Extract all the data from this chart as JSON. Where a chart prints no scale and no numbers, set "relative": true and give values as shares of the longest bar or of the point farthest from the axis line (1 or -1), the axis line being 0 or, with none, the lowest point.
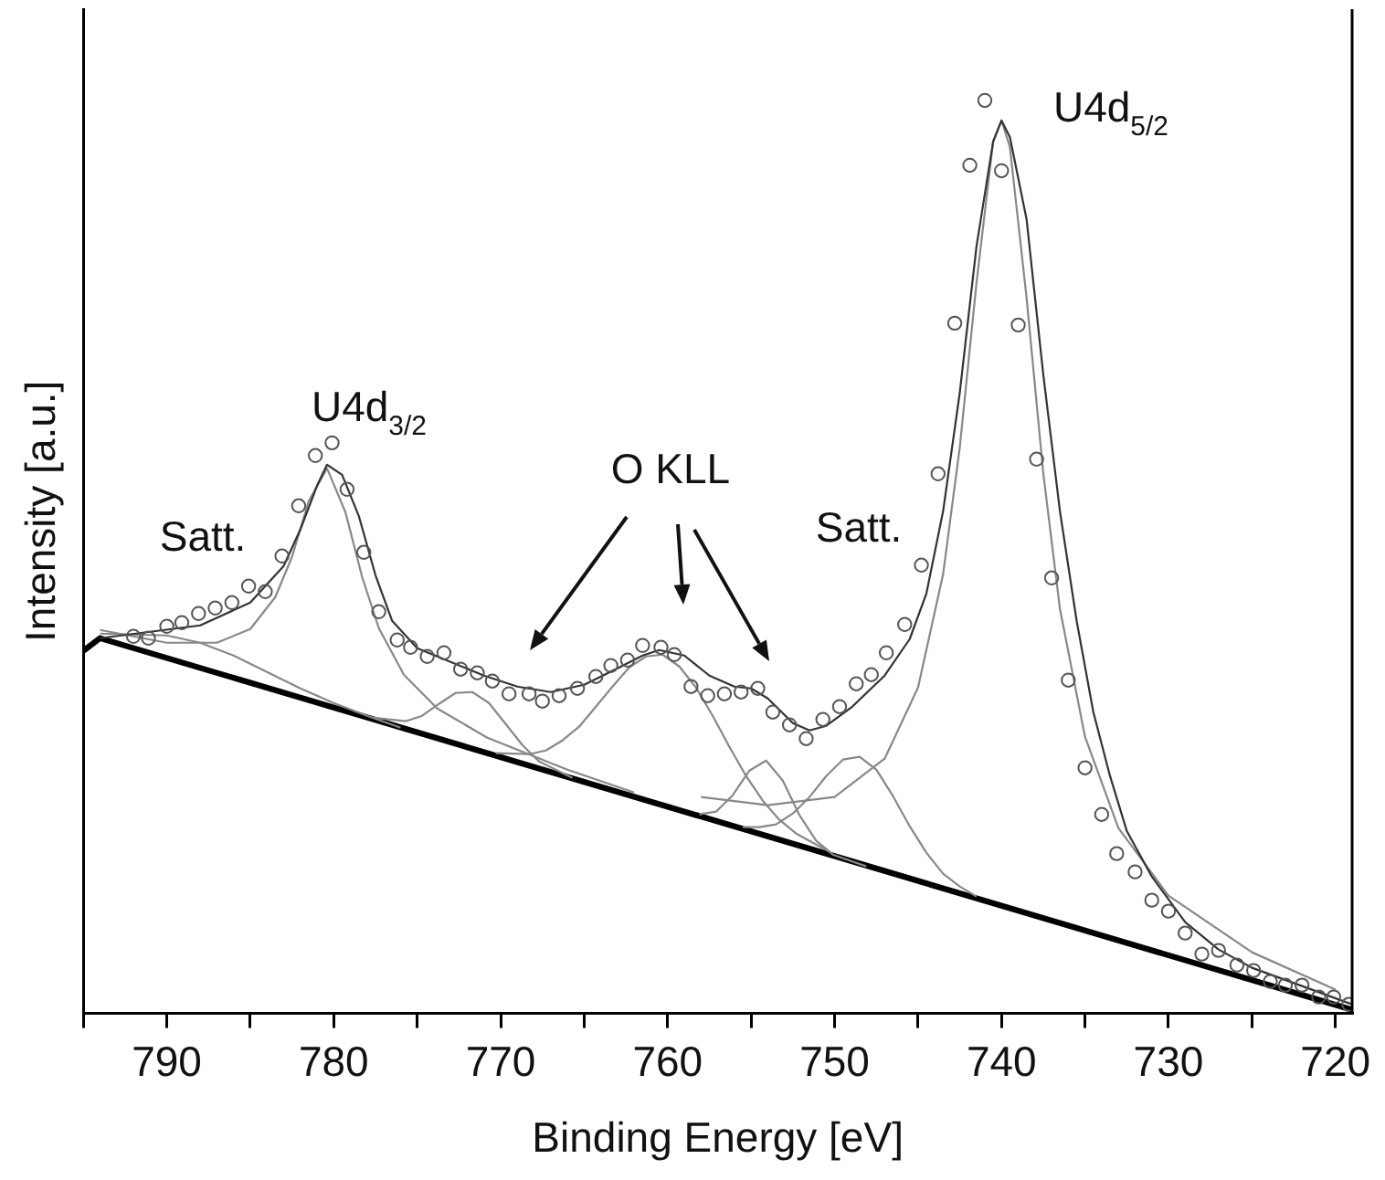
{
  "chart_data": {
    "type": "line",
    "xlabel": "Binding Energy [eV]",
    "ylabel": "Intensity [a.u.]",
    "relative": true,
    "xlim": [
      795,
      719
    ],
    "xticks": [
      {
        "value": 795,
        "label": null
      },
      790,
      {
        "value": 785,
        "label": null
      },
      780,
      {
        "value": 775,
        "label": null
      },
      770,
      {
        "value": 765,
        "label": null
      },
      760,
      {
        "value": 755,
        "label": null
      },
      750,
      {
        "value": 745,
        "label": null
      },
      740,
      {
        "value": 735,
        "label": null
      },
      730,
      {
        "value": 725,
        "label": null
      },
      720
    ],
    "grid": false,
    "legend": false,
    "annotations": [
      "U4d$_{5/2}$",
      "U4d$_{3/2}$",
      "Satt.",
      "Satt.",
      "O KLL"
    ],
    "series": [
      {
        "type": "scatter",
        "marker": "circle",
        "color": "#555555",
        "x": [
          792.0,
          791.1,
          790.0,
          789.1,
          788.1,
          787.1,
          786.1,
          785.1,
          784.1,
          783.1,
          782.1,
          781.1,
          780.1,
          779.2,
          778.2,
          777.3,
          776.2,
          775.4,
          774.4,
          773.4,
          772.4,
          771.4,
          770.5,
          769.5,
          768.3,
          767.5,
          766.5,
          765.4,
          764.3,
          763.4,
          762.4,
          761.5,
          760.4,
          759.6,
          758.6,
          757.6,
          756.6,
          755.6,
          754.6,
          753.7,
          752.7,
          751.7,
          750.7,
          749.7,
          748.7,
          747.8,
          746.9,
          745.8,
          744.8,
          743.8,
          742.8,
          741.9,
          741.0,
          740.0,
          739.0,
          737.9,
          737.0,
          736.0,
          735.0,
          734.0,
          733.1,
          732.0,
          731.0,
          730.0,
          729.0,
          728.0,
          727.0,
          725.9,
          724.9,
          723.9,
          723.0,
          722.0,
          721.0,
          720.1,
          719.2
        ],
        "values": [
          0.413,
          0.411,
          0.424,
          0.428,
          0.438,
          0.444,
          0.45,
          0.468,
          0.462,
          0.501,
          0.556,
          0.611,
          0.625,
          0.574,
          0.505,
          0.44,
          0.409,
          0.401,
          0.391,
          0.395,
          0.377,
          0.373,
          0.364,
          0.35,
          0.35,
          0.342,
          0.348,
          0.356,
          0.369,
          0.381,
          0.387,
          0.403,
          0.401,
          0.393,
          0.358,
          0.348,
          0.35,
          0.352,
          0.356,
          0.33,
          0.316,
          0.301,
          0.322,
          0.336,
          0.361,
          0.371,
          0.395,
          0.426,
          0.491,
          0.591,
          0.756,
          0.929,
          1.0,
          0.923,
          0.754,
          0.607,
          0.477,
          0.365,
          0.269,
          0.218,
          0.175,
          0.155,
          0.124,
          0.112,
          0.088,
          0.065,
          0.069,
          0.053,
          0.047,
          0.035,
          0.031,
          0.031,
          0.018,
          0.018,
          0.01
        ]
      },
      {
        "color": "#333333",
        "x": [
          794,
          791,
          788,
          785,
          783,
          782,
          781,
          780.4,
          779.5,
          778.5,
          777.5,
          776.5,
          775,
          773,
          771,
          769,
          767,
          765,
          763,
          761.5,
          760.5,
          759,
          757.5,
          756,
          755,
          754,
          752.5,
          751.5,
          750.5,
          749,
          747,
          745.5,
          744.5,
          743.5,
          742.5,
          741.5,
          740.5,
          740,
          739.5,
          738.5,
          737.5,
          736.5,
          735.5,
          734.5,
          733.5,
          732.5,
          731,
          729,
          727,
          725,
          722,
          719
        ],
        "values": [
          0.411,
          0.418,
          0.425,
          0.45,
          0.49,
          0.53,
          0.578,
          0.601,
          0.59,
          0.545,
          0.48,
          0.43,
          0.4,
          0.385,
          0.37,
          0.358,
          0.352,
          0.36,
          0.378,
          0.392,
          0.398,
          0.392,
          0.37,
          0.358,
          0.356,
          0.345,
          0.318,
          0.31,
          0.315,
          0.335,
          0.37,
          0.41,
          0.46,
          0.55,
          0.68,
          0.84,
          0.955,
          0.978,
          0.96,
          0.87,
          0.7,
          0.55,
          0.43,
          0.33,
          0.26,
          0.2,
          0.15,
          0.1,
          0.07,
          0.05,
          0.03,
          0.01
        ]
      },
      {
        "type": "line",
        "color": "#888888",
        "x": [
          758,
          754,
          750,
          747,
          745,
          743.5,
          742.5,
          741.5,
          740.5,
          740,
          739.5,
          738.5,
          737.5,
          736.5,
          735,
          733,
          730,
          725,
          720
        ],
        "values": [
          0.237,
          0.228,
          0.237,
          0.279,
          0.357,
          0.481,
          0.62,
          0.8,
          0.955,
          0.978,
          0.949,
          0.784,
          0.592,
          0.443,
          0.303,
          0.203,
          0.129,
          0.067,
          0.026
        ]
      },
      {
        "type": "line",
        "color": "#888888",
        "x": [
          794,
          790,
          787,
          785,
          783.5,
          782.5,
          781.5,
          780.4,
          779.3,
          778.3,
          777.3,
          775.8,
          773.8,
          770.8,
          766,
          762
        ],
        "values": [
          0.42,
          0.406,
          0.406,
          0.421,
          0.456,
          0.5,
          0.561,
          0.597,
          0.549,
          0.478,
          0.422,
          0.371,
          0.334,
          0.302,
          0.267,
          0.242
        ]
      },
      {
        "type": "line",
        "color": "#888888",
        "x": [
          794,
          792,
          790,
          788,
          786,
          784,
          782,
          780,
          778,
          776
        ],
        "values": [
          0.416,
          0.415,
          0.414,
          0.406,
          0.392,
          0.374,
          0.356,
          0.34,
          0.326,
          0.313
        ]
      },
      {
        "type": "line",
        "color": "#888888",
        "x": [
          777.7,
          775.7,
          774.7,
          773.7,
          772.7,
          771.7,
          770.7,
          769.7,
          768.7,
          767.7,
          765.7
        ],
        "values": [
          0.324,
          0.32,
          0.326,
          0.339,
          0.351,
          0.352,
          0.34,
          0.317,
          0.294,
          0.276,
          0.258
        ]
      },
      {
        "type": "line",
        "color": "#888888",
        "x": [
          770.3,
          768.3,
          767.3,
          766.3,
          765.3,
          764.3,
          763.3,
          762.3,
          761.3,
          760.3,
          759.3,
          758.3,
          757.3,
          756.3,
          755.3,
          754.3,
          753.3,
          752.3,
          750.3
        ],
        "values": [
          0.285,
          0.284,
          0.288,
          0.299,
          0.314,
          0.336,
          0.358,
          0.379,
          0.391,
          0.393,
          0.38,
          0.357,
          0.326,
          0.292,
          0.26,
          0.233,
          0.212,
          0.197,
          0.177
        ]
      },
      {
        "type": "line",
        "color": "#888888",
        "x": [
          758.1,
          757.1,
          756.1,
          755.1,
          754.1,
          753.1,
          752.1,
          751.1,
          750.1,
          748.1
        ],
        "values": [
          0.218,
          0.221,
          0.239,
          0.266,
          0.277,
          0.255,
          0.217,
          0.189,
          0.174,
          0.161
        ]
      },
      {
        "type": "line",
        "color": "#888888",
        "x": [
          755.5,
          754.5,
          753.5,
          752.5,
          751.5,
          750.5,
          749.5,
          748.5,
          747.5,
          746.5,
          745.5,
          744.5,
          743.5,
          742.5,
          741.5
        ],
        "values": [
          0.204,
          0.204,
          0.207,
          0.219,
          0.237,
          0.26,
          0.278,
          0.281,
          0.267,
          0.238,
          0.205,
          0.176,
          0.153,
          0.139,
          0.128
        ]
      },
      {
        "type": "line",
        "color": "#000000",
        "x": [
          795,
          794,
          719
        ],
        "values": [
          0.397,
          0.411,
          0.004
        ]
      }
    ]
  }
}
